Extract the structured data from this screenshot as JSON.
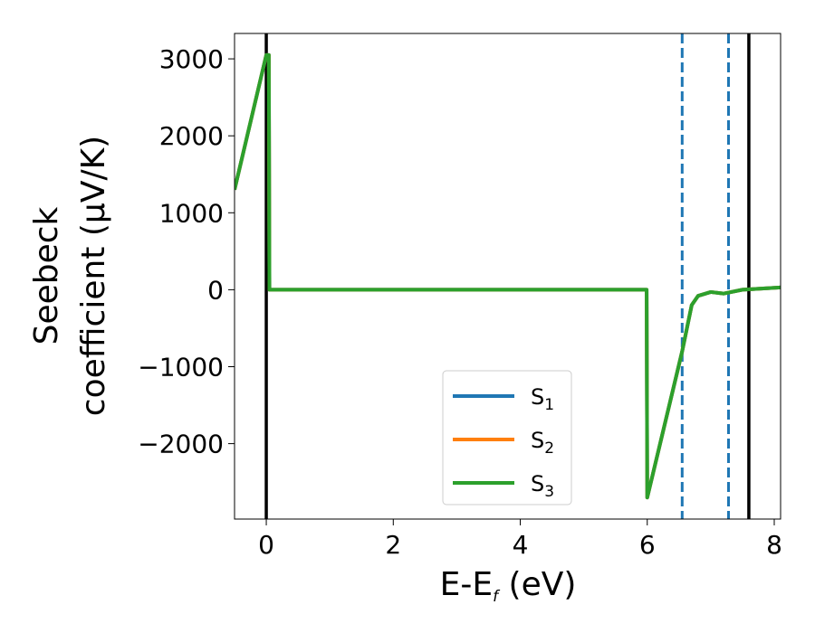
{
  "chart_data": {
    "type": "line",
    "xlabel": "E-E",
    "xlabel_sub": "f",
    "xlabel_unit": " (eV)",
    "ylabel_line1": "Seebeck",
    "ylabel_line2": "coefficient  (μV/K)",
    "xlim": [
      -0.5,
      8.1
    ],
    "ylim": [
      -2980,
      3330
    ],
    "xticks": [
      0,
      2,
      4,
      6,
      8
    ],
    "xtick_labels": [
      "0",
      "2",
      "4",
      "6",
      "8"
    ],
    "yticks": [
      3000,
      2000,
      1000,
      0,
      -1000,
      -2000
    ],
    "ytick_labels": [
      "3000",
      "2000",
      "1000",
      "0",
      "−1000",
      "−2000"
    ],
    "grid": false,
    "legend_position": "lower-center",
    "series": [
      {
        "name": "S",
        "sub": "1",
        "color": "#1f77b4",
        "x": [
          -0.5,
          0.0,
          0.04,
          0.05,
          5.99,
          6.0,
          6.55,
          6.7,
          6.8,
          7.0,
          7.2,
          7.5,
          8.1
        ],
        "y": [
          1300,
          3050,
          3050,
          0,
          0,
          -2700,
          -800,
          -200,
          -80,
          -30,
          -50,
          0,
          30
        ]
      },
      {
        "name": "S",
        "sub": "2",
        "color": "#ff7f0e",
        "x": [
          -0.5,
          0.0,
          0.04,
          0.05,
          5.99,
          6.0,
          6.55,
          6.7,
          6.8,
          7.0,
          7.2,
          7.5,
          8.1
        ],
        "y": [
          1300,
          3050,
          3050,
          0,
          0,
          -2700,
          -800,
          -200,
          -80,
          -30,
          -50,
          0,
          30
        ]
      },
      {
        "name": "S",
        "sub": "3",
        "color": "#2ca02c",
        "x": [
          -0.5,
          0.0,
          0.04,
          0.05,
          5.99,
          6.0,
          6.55,
          6.7,
          6.8,
          7.0,
          7.2,
          7.5,
          8.1
        ],
        "y": [
          1300,
          3050,
          3050,
          0,
          0,
          -2700,
          -800,
          -200,
          -80,
          -30,
          -50,
          0,
          30
        ]
      }
    ],
    "vlines": [
      {
        "x": 0.0,
        "style": "solid",
        "color": "#000000"
      },
      {
        "x": 7.6,
        "style": "solid",
        "color": "#000000"
      },
      {
        "x": 6.55,
        "style": "dashed",
        "color": "#1f77b4"
      },
      {
        "x": 7.28,
        "style": "dashed",
        "color": "#1f77b4"
      }
    ]
  }
}
